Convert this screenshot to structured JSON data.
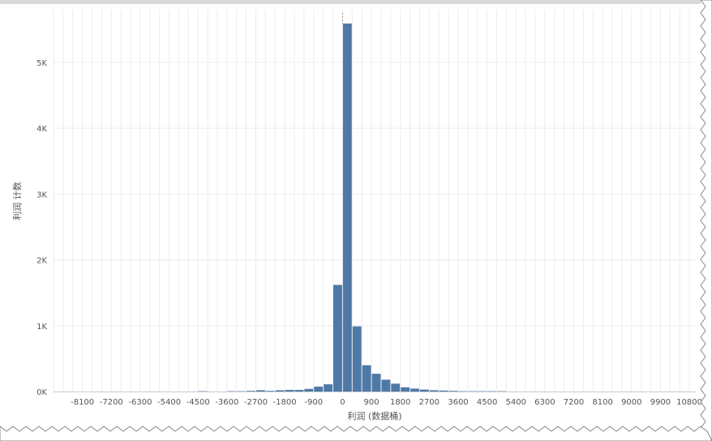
{
  "chart_data": {
    "type": "bar",
    "xlabel": "利润 (数据桶)",
    "ylabel": "利润 计数",
    "x_tick_labels": [
      "-8100",
      "-7200",
      "-6300",
      "-5400",
      "-4500",
      "-3600",
      "-2700",
      "-1800",
      "-900",
      "0",
      "900",
      "1800",
      "2700",
      "3600",
      "4500",
      "5400",
      "6300",
      "7200",
      "8100",
      "9000",
      "9900",
      "10800"
    ],
    "x_ticks": [
      -8100,
      -7200,
      -6300,
      -5400,
      -4500,
      -3600,
      -2700,
      -1800,
      -900,
      0,
      900,
      1800,
      2700,
      3600,
      4500,
      5400,
      6300,
      7200,
      8100,
      9000,
      9900,
      10800
    ],
    "y_tick_labels": [
      "0K",
      "1K",
      "2K",
      "3K",
      "4K",
      "5K"
    ],
    "y_ticks": [
      0,
      1000,
      2000,
      3000,
      4000,
      5000
    ],
    "xlim": [
      -9000,
      11000
    ],
    "ylim": [
      0,
      5800
    ],
    "bin_width": 300,
    "bins": [
      {
        "x0": -4500,
        "value": 5
      },
      {
        "x0": -3600,
        "value": 5
      },
      {
        "x0": -3300,
        "value": 5
      },
      {
        "x0": -3000,
        "value": 10
      },
      {
        "x0": -2700,
        "value": 20
      },
      {
        "x0": -2400,
        "value": 10
      },
      {
        "x0": -2100,
        "value": 20
      },
      {
        "x0": -1800,
        "value": 25
      },
      {
        "x0": -1500,
        "value": 25
      },
      {
        "x0": -1200,
        "value": 40
      },
      {
        "x0": -900,
        "value": 75
      },
      {
        "x0": -600,
        "value": 110
      },
      {
        "x0": -300,
        "value": 310
      },
      {
        "x0": -300,
        "value": 0
      },
      {
        "x0": -300,
        "value": 0
      },
      {
        "x0": -300,
        "value": 0
      },
      {
        "x0": -300,
        "value": 0
      },
      {
        "x0": -300,
        "value": 0
      },
      {
        "x0": -300,
        "value": 0
      },
      {
        "x0": -300,
        "value": 0
      },
      {
        "x0": -300,
        "value": 0
      },
      {
        "x0": 0,
        "value": 5590
      },
      {
        "x0": 300,
        "value": 990
      },
      {
        "x0": 600,
        "value": 400
      },
      {
        "x0": 900,
        "value": 270
      },
      {
        "x0": 1200,
        "value": 180
      },
      {
        "x0": 1500,
        "value": 120
      },
      {
        "x0": 1800,
        "value": 65
      },
      {
        "x0": 2100,
        "value": 45
      },
      {
        "x0": 2400,
        "value": 30
      },
      {
        "x0": 2700,
        "value": 20
      },
      {
        "x0": 3000,
        "value": 15
      },
      {
        "x0": 3300,
        "value": 10
      },
      {
        "x0": 3600,
        "value": 5
      },
      {
        "x0": 3900,
        "value": 5
      },
      {
        "x0": 4200,
        "value": 5
      },
      {
        "x0": 4500,
        "value": 5
      },
      {
        "x0": 4800,
        "value": 5
      },
      {
        "x0": -600,
        "value": 0
      },
      {
        "x0": -300,
        "value": 1310
      }
    ],
    "grid": true,
    "colors": {
      "bar": "#4e79a7",
      "grid": "#ececec",
      "zero_line": "#9a9a9a"
    }
  }
}
